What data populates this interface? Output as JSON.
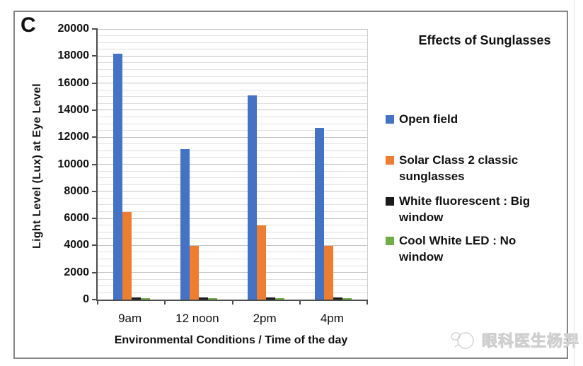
{
  "panel_label": "C",
  "chart_data": {
    "type": "bar",
    "title": "Effects of Sunglasses",
    "categories": [
      "9am",
      "12 noon",
      "2pm",
      "4pm"
    ],
    "series": [
      {
        "name": "Open field",
        "color": "#4472C4",
        "values": [
          18150,
          11100,
          15100,
          12700
        ]
      },
      {
        "name": "Solar Class 2 classic sunglasses",
        "color": "#ED7D31",
        "values": [
          6500,
          3980,
          5500,
          3950
        ]
      },
      {
        "name": "White fluorescent : Big window",
        "color": "#1a1a1a",
        "values": [
          160,
          160,
          180,
          150
        ]
      },
      {
        "name": "Cool White LED : No window",
        "color": "#70AD47",
        "values": [
          110,
          100,
          110,
          100
        ]
      }
    ],
    "xlabel": "Environmental Conditions / Time of the day",
    "ylabel": "Light Level (Lux) at Eye Level",
    "ylim": [
      0,
      20000
    ],
    "ytick_step": 2000,
    "minor_grid_step": 500,
    "grid": true,
    "legend_position": "right"
  },
  "legend": {
    "items": [
      {
        "lines": [
          "Open field"
        ]
      },
      {
        "lines": [
          "Solar Class 2 classic",
          "sunglasses"
        ]
      },
      {
        "lines": [
          "White fluorescent : Big",
          "window"
        ]
      },
      {
        "lines": [
          "Cool White LED : No window"
        ]
      }
    ]
  },
  "watermark": {
    "text": "眼科医生杨羿"
  }
}
